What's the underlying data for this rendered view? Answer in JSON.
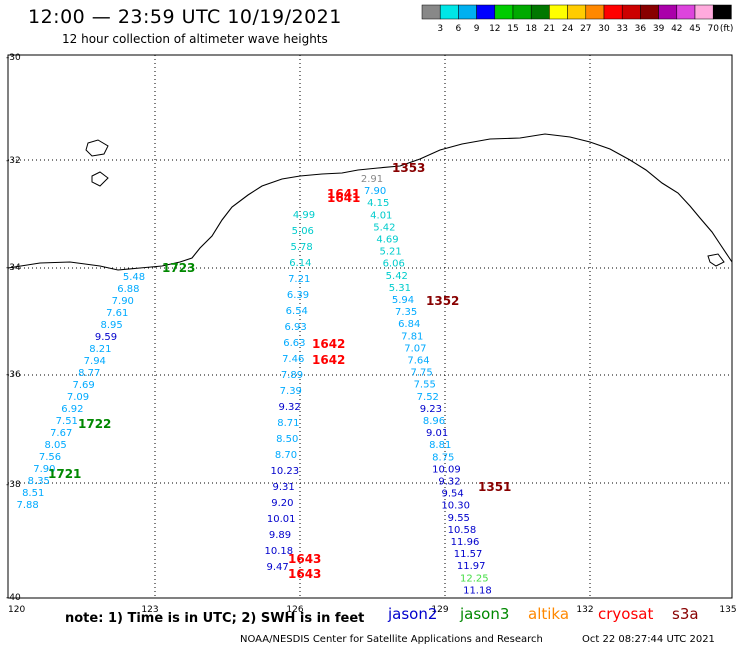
{
  "header": {
    "title": "12:00 — 23:59 UTC 10/19/2021",
    "subtitle": "12 hour collection of altimeter wave heights"
  },
  "scale": {
    "colors": [
      "#888888",
      "#00e6e6",
      "#00b0f0",
      "#0000ff",
      "#00cc00",
      "#00aa00",
      "#007700",
      "#ffff00",
      "#ffcc00",
      "#ff8800",
      "#ff0000",
      "#cc0000",
      "#880000",
      "#aa00aa",
      "#dd44dd",
      "#ffaadd",
      "#000000"
    ],
    "labels": [
      "3",
      "6",
      "9",
      "12",
      "15",
      "18",
      "21",
      "24",
      "27",
      "30",
      "33",
      "36",
      "39",
      "42",
      "45",
      "70"
    ],
    "unit": "(ft)"
  },
  "axes": {
    "lon_ticks": [
      "120",
      "123",
      "126",
      "129",
      "132",
      "135"
    ],
    "lat_ticks": [
      "-30",
      "-32",
      "-34",
      "-36",
      "-38",
      "-40"
    ]
  },
  "footer": {
    "note": "note:  1) Time is in UTC; 2) SWH is in feet",
    "satellites": [
      {
        "name": "jason2",
        "color": "#0000cc"
      },
      {
        "name": "jason3",
        "color": "#008800"
      },
      {
        "name": "altika",
        "color": "#ff8800"
      },
      {
        "name": "cryosat",
        "color": "#ff0000"
      },
      {
        "name": "s3a",
        "color": "#880000"
      }
    ],
    "credit": "NOAA/NESDIS Center for Satellite Applications and Research",
    "timestamp": "Oct 22 08:27:44 UTC 2021"
  },
  "tracks": [
    {
      "id": "track-a",
      "values": [
        {
          "v": "5.48",
          "c": "#00aaff"
        },
        {
          "v": "6.88",
          "c": "#00aaff"
        },
        {
          "v": "7.90",
          "c": "#00aaff"
        },
        {
          "v": "7.61",
          "c": "#00aaff"
        },
        {
          "v": "8.95",
          "c": "#00aaff"
        },
        {
          "v": "9.59",
          "c": "#0000cc"
        },
        {
          "v": "8.21",
          "c": "#00aaff"
        },
        {
          "v": "7.94",
          "c": "#00aaff"
        },
        {
          "v": "8.77",
          "c": "#00aaff"
        },
        {
          "v": "7.69",
          "c": "#00aaff"
        },
        {
          "v": "7.09",
          "c": "#00aaff"
        },
        {
          "v": "6.92",
          "c": "#00aaff"
        },
        {
          "v": "7.51",
          "c": "#00aaff"
        },
        {
          "v": "7.67",
          "c": "#00aaff"
        },
        {
          "v": "8.05",
          "c": "#00aaff"
        },
        {
          "v": "7.56",
          "c": "#00aaff"
        },
        {
          "v": "7.90",
          "c": "#00aaff"
        },
        {
          "v": "8.35",
          "c": "#00aaff"
        },
        {
          "v": "8.51",
          "c": "#00aaff"
        },
        {
          "v": "7.88",
          "c": "#00aaff"
        }
      ]
    },
    {
      "id": "track-b",
      "values": [
        {
          "v": "4.99",
          "c": "#00cccc"
        },
        {
          "v": "5.06",
          "c": "#00cccc"
        },
        {
          "v": "5.78",
          "c": "#00cccc"
        },
        {
          "v": "6.14",
          "c": "#00cccc"
        },
        {
          "v": "7.21",
          "c": "#00aaff"
        },
        {
          "v": "6.39",
          "c": "#00aaff"
        },
        {
          "v": "6.54",
          "c": "#00aaff"
        },
        {
          "v": "6.93",
          "c": "#00aaff"
        },
        {
          "v": "6.63",
          "c": "#00aaff"
        },
        {
          "v": "7.46",
          "c": "#00aaff"
        },
        {
          "v": "7.89",
          "c": "#00aaff"
        },
        {
          "v": "7.39",
          "c": "#00aaff"
        },
        {
          "v": "9.32",
          "c": "#0000cc"
        },
        {
          "v": "8.71",
          "c": "#00aaff"
        },
        {
          "v": "8.50",
          "c": "#00aaff"
        },
        {
          "v": "8.70",
          "c": "#00aaff"
        },
        {
          "v": "10.23",
          "c": "#0000cc"
        },
        {
          "v": "9.31",
          "c": "#0000cc"
        },
        {
          "v": "9.20",
          "c": "#0000cc"
        },
        {
          "v": "10.01",
          "c": "#0000cc"
        },
        {
          "v": "9.89",
          "c": "#0000cc"
        },
        {
          "v": "10.18",
          "c": "#0000cc"
        },
        {
          "v": "9.47",
          "c": "#0000cc"
        }
      ]
    },
    {
      "id": "track-c",
      "values": [
        {
          "v": "2.91",
          "c": "#888888"
        },
        {
          "v": "7.90",
          "c": "#00aaff"
        },
        {
          "v": "4.15",
          "c": "#00cccc"
        },
        {
          "v": "4.01",
          "c": "#00cccc"
        },
        {
          "v": "5.42",
          "c": "#00cccc"
        },
        {
          "v": "4.69",
          "c": "#00cccc"
        },
        {
          "v": "5.21",
          "c": "#00cccc"
        },
        {
          "v": "6.06",
          "c": "#00cccc"
        },
        {
          "v": "5.42",
          "c": "#00cccc"
        },
        {
          "v": "5.31",
          "c": "#00cccc"
        },
        {
          "v": "5.94",
          "c": "#00aaff"
        },
        {
          "v": "7.35",
          "c": "#00aaff"
        },
        {
          "v": "6.84",
          "c": "#00aaff"
        },
        {
          "v": "7.81",
          "c": "#00aaff"
        },
        {
          "v": "7.07",
          "c": "#00aaff"
        },
        {
          "v": "7.64",
          "c": "#00aaff"
        },
        {
          "v": "7.75",
          "c": "#00aaff"
        },
        {
          "v": "7.55",
          "c": "#00aaff"
        },
        {
          "v": "7.52",
          "c": "#00aaff"
        },
        {
          "v": "9.23",
          "c": "#0000cc"
        },
        {
          "v": "8.96",
          "c": "#00aaff"
        },
        {
          "v": "9.01",
          "c": "#0000cc"
        },
        {
          "v": "8.81",
          "c": "#00aaff"
        },
        {
          "v": "8.75",
          "c": "#00aaff"
        },
        {
          "v": "10.09",
          "c": "#0000cc"
        },
        {
          "v": "9.32",
          "c": "#0000cc"
        },
        {
          "v": "9.54",
          "c": "#0000cc"
        },
        {
          "v": "10.30",
          "c": "#0000cc"
        },
        {
          "v": "9.55",
          "c": "#0000cc"
        },
        {
          "v": "10.58",
          "c": "#0000cc"
        },
        {
          "v": "11.96",
          "c": "#0000cc"
        },
        {
          "v": "11.57",
          "c": "#0000cc"
        },
        {
          "v": "11.97",
          "c": "#0000cc"
        },
        {
          "v": "12.25",
          "c": "#44dd44"
        },
        {
          "v": "11.18",
          "c": "#0000cc"
        }
      ]
    }
  ],
  "times": [
    {
      "t": "1353",
      "c": "#880000"
    },
    {
      "t": "1641",
      "c": "#ff0000"
    },
    {
      "t": "1641",
      "c": "#ff0000"
    },
    {
      "t": "1723",
      "c": "#008800"
    },
    {
      "t": "1352",
      "c": "#880000"
    },
    {
      "t": "1642",
      "c": "#ff0000"
    },
    {
      "t": "1642",
      "c": "#ff0000"
    },
    {
      "t": "1722",
      "c": "#008800"
    },
    {
      "t": "1721",
      "c": "#008800"
    },
    {
      "t": "1351",
      "c": "#880000"
    },
    {
      "t": "1643",
      "c": "#ff0000"
    },
    {
      "t": "1643",
      "c": "#ff0000"
    }
  ]
}
